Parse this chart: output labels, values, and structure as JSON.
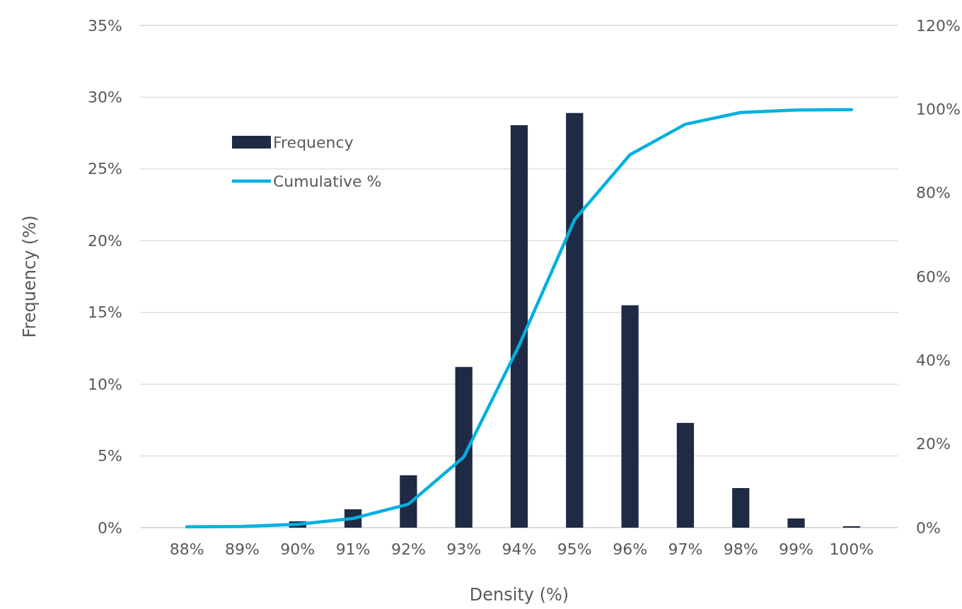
{
  "chart_data": {
    "type": "bar",
    "xlabel": "Density (%)",
    "ylabel": "Frequency (%)",
    "categories": [
      "88%",
      "89%",
      "90%",
      "91%",
      "92%",
      "93%",
      "94%",
      "95%",
      "96%",
      "97%",
      "98%",
      "99%",
      "100%"
    ],
    "series": [
      {
        "name": "Frequency",
        "color": "#1f2a44",
        "values": [
          0,
          0,
          0.44,
          1.28,
          3.65,
          11.2,
          28.05,
          28.9,
          15.5,
          7.3,
          2.76,
          0.64,
          0.1
        ]
      },
      {
        "name": "Cumulative %",
        "type": "line",
        "axis": "y2",
        "color": "#00b0e0",
        "values": [
          0.2,
          0.3,
          0.8,
          2.2,
          5.6,
          16.9,
          43.6,
          73.6,
          89.1,
          96.4,
          99.2,
          99.8,
          99.9
        ]
      }
    ],
    "ylim": [
      0,
      35
    ],
    "yticks": [
      {
        "value": 0,
        "label": "0%"
      },
      {
        "value": 5,
        "label": "5%"
      },
      {
        "value": 10,
        "label": "10%"
      },
      {
        "value": 15,
        "label": "15%"
      },
      {
        "value": 20,
        "label": "20%"
      },
      {
        "value": 25,
        "label": "25%"
      },
      {
        "value": 30,
        "label": "30%"
      },
      {
        "value": 35,
        "label": "35%"
      }
    ],
    "y2lim": [
      0,
      120
    ],
    "y2ticks": [
      {
        "value": 0,
        "label": "0%"
      },
      {
        "value": 20,
        "label": "20%"
      },
      {
        "value": 40,
        "label": "40%"
      },
      {
        "value": 60,
        "label": "60%"
      },
      {
        "value": 80,
        "label": "80%"
      },
      {
        "value": 100,
        "label": "100%"
      },
      {
        "value": 120,
        "label": "120%"
      }
    ],
    "grid": "y",
    "legend": "top left",
    "marker": "none",
    "line_style": "solid"
  }
}
